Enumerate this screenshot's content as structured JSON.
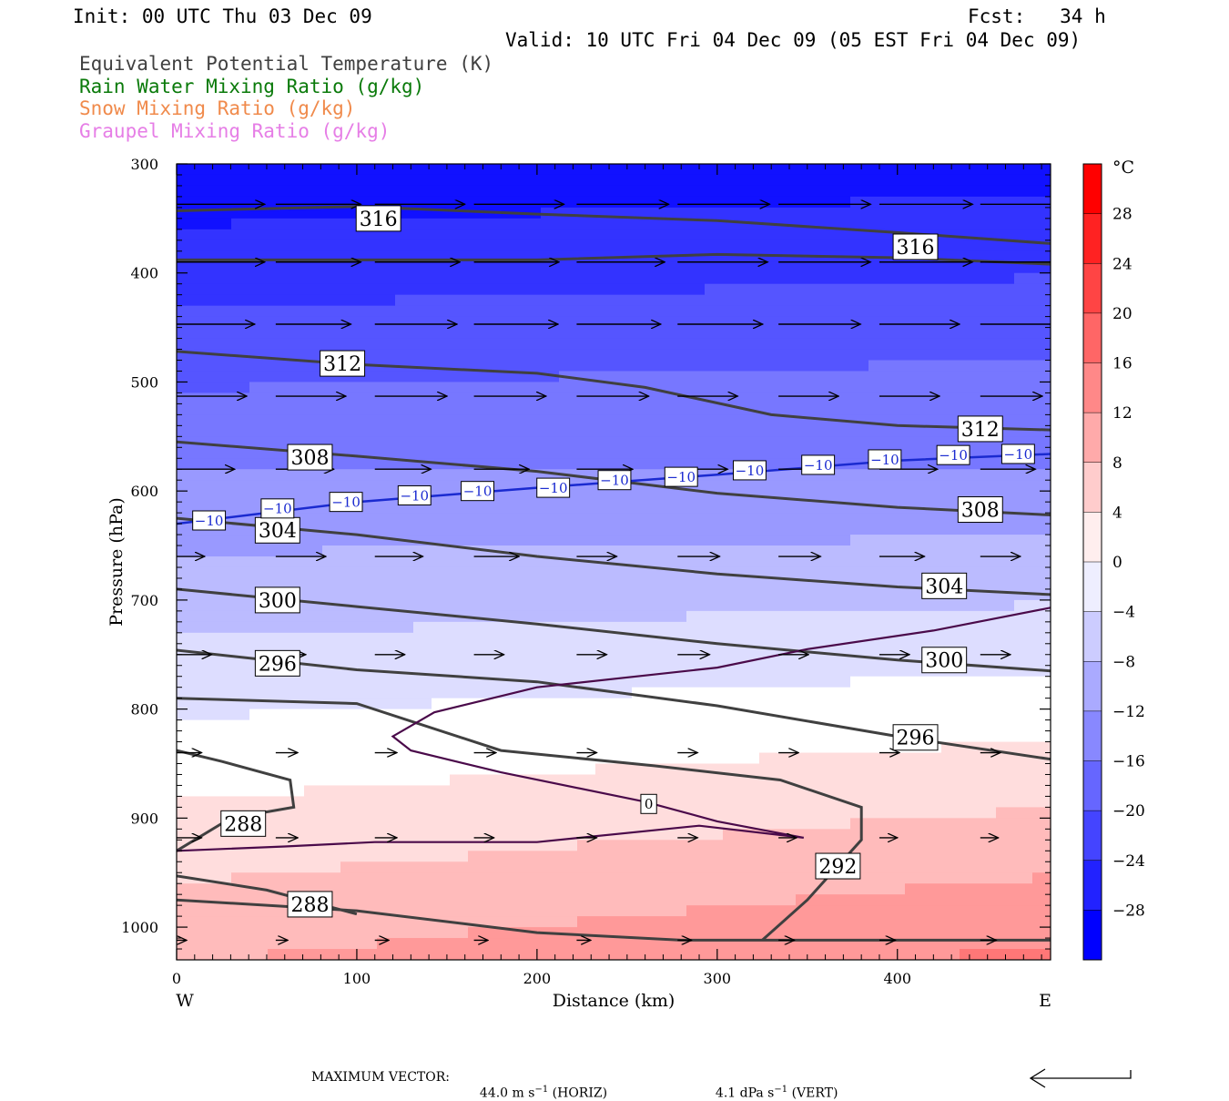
{
  "header": {
    "init": "Init: 00 UTC Thu 03 Dec 09",
    "fcst": "Fcst:   34 h",
    "valid": "Valid: 10 UTC Fri 04 Dec 09 (05 EST Fri 04 Dec 09)",
    "fields": [
      {
        "label": "Equivalent Potential Temperature (K)",
        "color": "#404040"
      },
      {
        "label": "Rain Water Mixing Ratio (g/kg)",
        "color": "#0a7a0a"
      },
      {
        "label": "Snow Mixing Ratio (g/kg)",
        "color": "#f08a4b"
      },
      {
        "label": "Graupel Mixing Ratio (g/kg)",
        "color": "#e67ee6"
      }
    ]
  },
  "chart_data": {
    "type": "cross-section",
    "xlabel": "Distance (km)",
    "ylabel": "Pressure (hPa)",
    "xlim": [
      0,
      485
    ],
    "ylim": [
      300,
      1030
    ],
    "x_ticks": [
      "0",
      "100",
      "200",
      "300",
      "400"
    ],
    "x_tick_values": [
      0,
      100,
      200,
      300,
      400
    ],
    "y_ticks": [
      "300",
      "400",
      "500",
      "600",
      "700",
      "800",
      "900",
      "1000"
    ],
    "y_tick_values": [
      300,
      400,
      500,
      600,
      700,
      800,
      900,
      1000
    ],
    "left_end_label": "W",
    "right_end_label": "E",
    "colorbar": {
      "unit": "°C",
      "labels": [
        "28",
        "24",
        "20",
        "16",
        "12",
        "8",
        "4",
        "0",
        "−4",
        "−8",
        "−12",
        "−16",
        "−20",
        "−24",
        "−28"
      ],
      "values": [
        28,
        24,
        20,
        16,
        12,
        8,
        4,
        0,
        -4,
        -8,
        -12,
        -16,
        -20,
        -24,
        -28
      ],
      "min": -32,
      "max": 32,
      "step": 4
    },
    "theta_e_contours": [
      {
        "label": "316",
        "label_pos": [
          [
            112,
            350
          ],
          [
            410,
            376
          ]
        ],
        "points": [
          [
            0,
            343
          ],
          [
            100,
            339
          ],
          [
            200,
            346
          ],
          [
            300,
            352
          ],
          [
            400,
            363
          ],
          [
            485,
            373
          ]
        ]
      },
      {
        "label": "316",
        "label_pos": [],
        "points": [
          [
            0,
            388
          ],
          [
            200,
            388
          ],
          [
            300,
            383
          ],
          [
            400,
            386
          ],
          [
            485,
            392
          ]
        ]
      },
      {
        "label": "312",
        "label_pos": [
          [
            92,
            483
          ],
          [
            446,
            543
          ]
        ],
        "points": [
          [
            0,
            472
          ],
          [
            100,
            484
          ],
          [
            200,
            492
          ],
          [
            260,
            505
          ],
          [
            330,
            530
          ],
          [
            400,
            540
          ],
          [
            485,
            544
          ]
        ]
      },
      {
        "label": "308",
        "label_pos": [
          [
            74,
            569
          ],
          [
            446,
            617
          ]
        ],
        "points": [
          [
            0,
            555
          ],
          [
            100,
            568
          ],
          [
            200,
            582
          ],
          [
            300,
            602
          ],
          [
            400,
            615
          ],
          [
            485,
            622
          ]
        ]
      },
      {
        "label": "304",
        "label_pos": [
          [
            56,
            636
          ],
          [
            426,
            687
          ]
        ],
        "points": [
          [
            0,
            625
          ],
          [
            100,
            640
          ],
          [
            200,
            660
          ],
          [
            300,
            676
          ],
          [
            400,
            688
          ],
          [
            485,
            695
          ]
        ]
      },
      {
        "label": "300",
        "label_pos": [
          [
            56,
            700
          ],
          [
            426,
            755
          ]
        ],
        "points": [
          [
            0,
            690
          ],
          [
            100,
            706
          ],
          [
            200,
            722
          ],
          [
            300,
            740
          ],
          [
            400,
            755
          ],
          [
            485,
            765
          ]
        ]
      },
      {
        "label": "296",
        "label_pos": [
          [
            56,
            758
          ],
          [
            410,
            826
          ]
        ],
        "points": [
          [
            0,
            746
          ],
          [
            100,
            764
          ],
          [
            200,
            775
          ],
          [
            300,
            797
          ],
          [
            400,
            825
          ],
          [
            485,
            846
          ]
        ]
      },
      {
        "label": "292",
        "label_pos": [
          [
            367,
            944
          ]
        ],
        "points": [
          [
            325,
            1012
          ],
          [
            350,
            975
          ],
          [
            380,
            920
          ],
          [
            380,
            890
          ],
          [
            335,
            865
          ],
          [
            265,
            852
          ],
          [
            180,
            838
          ],
          [
            100,
            795
          ],
          [
            0,
            790
          ]
        ]
      },
      {
        "label": "288",
        "label_pos": [
          [
            37,
            905
          ]
        ],
        "points": [
          [
            0,
            930
          ],
          [
            30,
            900
          ],
          [
            65,
            890
          ],
          [
            63,
            865
          ],
          [
            25,
            848
          ],
          [
            0,
            838
          ]
        ]
      },
      {
        "label": "288",
        "label_pos": [
          [
            74,
            979
          ]
        ],
        "points": [
          [
            0,
            953
          ],
          [
            50,
            966
          ],
          [
            100,
            988
          ]
        ]
      },
      {
        "label": "",
        "label_pos": [],
        "points": [
          [
            0,
            975
          ],
          [
            100,
            985
          ],
          [
            200,
            1005
          ],
          [
            280,
            1012
          ],
          [
            485,
            1012
          ]
        ]
      }
    ],
    "isotherm_minus10": {
      "label": "−10",
      "label_pos": [
        [
          18,
          627
        ],
        [
          56,
          616
        ],
        [
          94,
          610
        ],
        [
          132,
          604
        ],
        [
          167,
          600
        ],
        [
          209,
          597
        ],
        [
          243,
          590
        ],
        [
          280,
          587
        ],
        [
          318,
          581
        ],
        [
          356,
          576
        ],
        [
          393,
          571
        ],
        [
          431,
          567
        ],
        [
          467,
          566
        ]
      ],
      "points": [
        [
          0,
          630
        ],
        [
          100,
          610
        ],
        [
          200,
          597
        ],
        [
          300,
          585
        ],
        [
          400,
          572
        ],
        [
          485,
          566
        ]
      ]
    },
    "isotherm_zero": {
      "label": "0",
      "label_pos": [
        [
          262,
          887
        ]
      ],
      "points": [
        [
          0,
          930
        ],
        [
          60,
          926
        ],
        [
          110,
          922
        ],
        [
          200,
          922
        ],
        [
          290,
          907
        ],
        [
          348,
          918
        ],
        [
          300,
          903
        ],
        [
          260,
          885
        ],
        [
          180,
          858
        ],
        [
          130,
          838
        ],
        [
          120,
          825
        ],
        [
          143,
          803
        ],
        [
          200,
          780
        ],
        [
          300,
          762
        ],
        [
          350,
          745
        ],
        [
          420,
          728
        ],
        [
          485,
          707
        ]
      ]
    },
    "wind_vectors": {
      "note": "u/v relative scale (max = 1)",
      "rows": [
        {
          "p": 337,
          "x": [
            0,
            55,
            110,
            165,
            222,
            278,
            334,
            390,
            446
          ],
          "u": [
            0.88,
            0.85,
            0.9,
            0.9,
            0.92,
            0.92,
            0.92,
            0.93,
            0.94
          ],
          "v": [
            0.0,
            0.0,
            0.0,
            0.0,
            0.0,
            0.0,
            0.0,
            0.0,
            0.0
          ]
        },
        {
          "p": 390,
          "x": [
            0,
            55,
            110,
            165,
            222,
            278,
            334,
            390,
            446
          ],
          "u": [
            0.88,
            0.85,
            0.85,
            0.85,
            0.88,
            0.9,
            0.92,
            0.93,
            0.94
          ],
          "v": [
            0.0,
            0.0,
            0.0,
            0.0,
            0.0,
            0.0,
            0.0,
            0.0,
            0.0
          ]
        },
        {
          "p": 447,
          "x": [
            0,
            55,
            110,
            165,
            222,
            278,
            334,
            390,
            446
          ],
          "u": [
            0.78,
            0.75,
            0.82,
            0.84,
            0.84,
            0.85,
            0.82,
            0.8,
            0.84
          ],
          "v": [
            0.0,
            0.0,
            0.0,
            0.0,
            0.0,
            0.0,
            0.0,
            0.0,
            0.0
          ]
        },
        {
          "p": 513,
          "x": [
            0,
            55,
            110,
            165,
            222,
            278,
            334,
            390,
            446
          ],
          "u": [
            0.7,
            0.7,
            0.72,
            0.72,
            0.72,
            0.6,
            0.6,
            0.6,
            0.62
          ],
          "v": [
            0.0,
            0.0,
            0.0,
            0.0,
            0.0,
            0.0,
            0.0,
            0.0,
            0.0
          ]
        },
        {
          "p": 580,
          "x": [
            0,
            55,
            110,
            165,
            222,
            278,
            334,
            390,
            446
          ],
          "u": [
            0.58,
            0.58,
            0.56,
            0.55,
            0.56,
            0.5,
            0.5,
            0.58,
            0.55
          ],
          "v": [
            0.0,
            0.0,
            0.0,
            0.0,
            0.0,
            0.0,
            0.0,
            0.0,
            0.0
          ]
        },
        {
          "p": 660,
          "x": [
            0,
            55,
            110,
            165,
            222,
            278,
            334,
            390,
            446
          ],
          "u": [
            0.28,
            0.5,
            0.48,
            0.45,
            0.4,
            0.42,
            0.42,
            0.45,
            0.4
          ],
          "v": [
            0.0,
            0.0,
            0.0,
            0.0,
            0.0,
            0.0,
            0.0,
            0.0,
            0.0
          ]
        },
        {
          "p": 750,
          "x": [
            0,
            55,
            110,
            165,
            222,
            278,
            334,
            390,
            446
          ],
          "u": [
            0.35,
            0.3,
            0.3,
            0.3,
            0.3,
            0.32,
            0.3,
            0.3,
            0.3
          ],
          "v": [
            0.0,
            0.0,
            0.0,
            0.0,
            0.0,
            0.0,
            0.0,
            0.0,
            0.0
          ]
        },
        {
          "p": 840,
          "x": [
            0,
            55,
            110,
            165,
            222,
            278,
            334,
            390,
            446
          ],
          "u": [
            0.25,
            0.22,
            0.22,
            0.22,
            0.2,
            0.2,
            0.2,
            0.2,
            0.2
          ],
          "v": [
            0.0,
            0.0,
            0.0,
            0.0,
            0.0,
            0.0,
            0.0,
            0.0,
            0.0
          ]
        },
        {
          "p": 918,
          "x": [
            0,
            55,
            110,
            165,
            222,
            278,
            334,
            390,
            446
          ],
          "u": [
            0.25,
            0.22,
            0.22,
            0.2,
            0.2,
            0.2,
            0.18,
            0.18,
            0.18
          ],
          "v": [
            0.0,
            0.0,
            0.0,
            0.0,
            0.0,
            0.0,
            0.0,
            0.0,
            0.0
          ]
        },
        {
          "p": 1012,
          "x": [
            0,
            55,
            110,
            165,
            222,
            278,
            334,
            390,
            446
          ],
          "u": [
            0.1,
            0.12,
            0.14,
            0.14,
            0.14,
            0.14,
            0.16,
            0.16,
            0.16
          ],
          "v": [
            0.0,
            0.0,
            0.0,
            0.0,
            0.0,
            0.0,
            0.0,
            0.0,
            0.0
          ]
        }
      ]
    },
    "shading_notes": "temperature shading from about −28 °C near 300 hPa to about +10 °C near the surface on the east side"
  },
  "footer": {
    "max_vector_label": "MAXIMUM VECTOR:",
    "horiz_value": "44.0 m s",
    "horiz_exp": "−1",
    "horiz_unit": "(HORIZ)",
    "vert_value": "4.1 dPa s",
    "vert_exp": "−1",
    "vert_unit": "(VERT)"
  }
}
